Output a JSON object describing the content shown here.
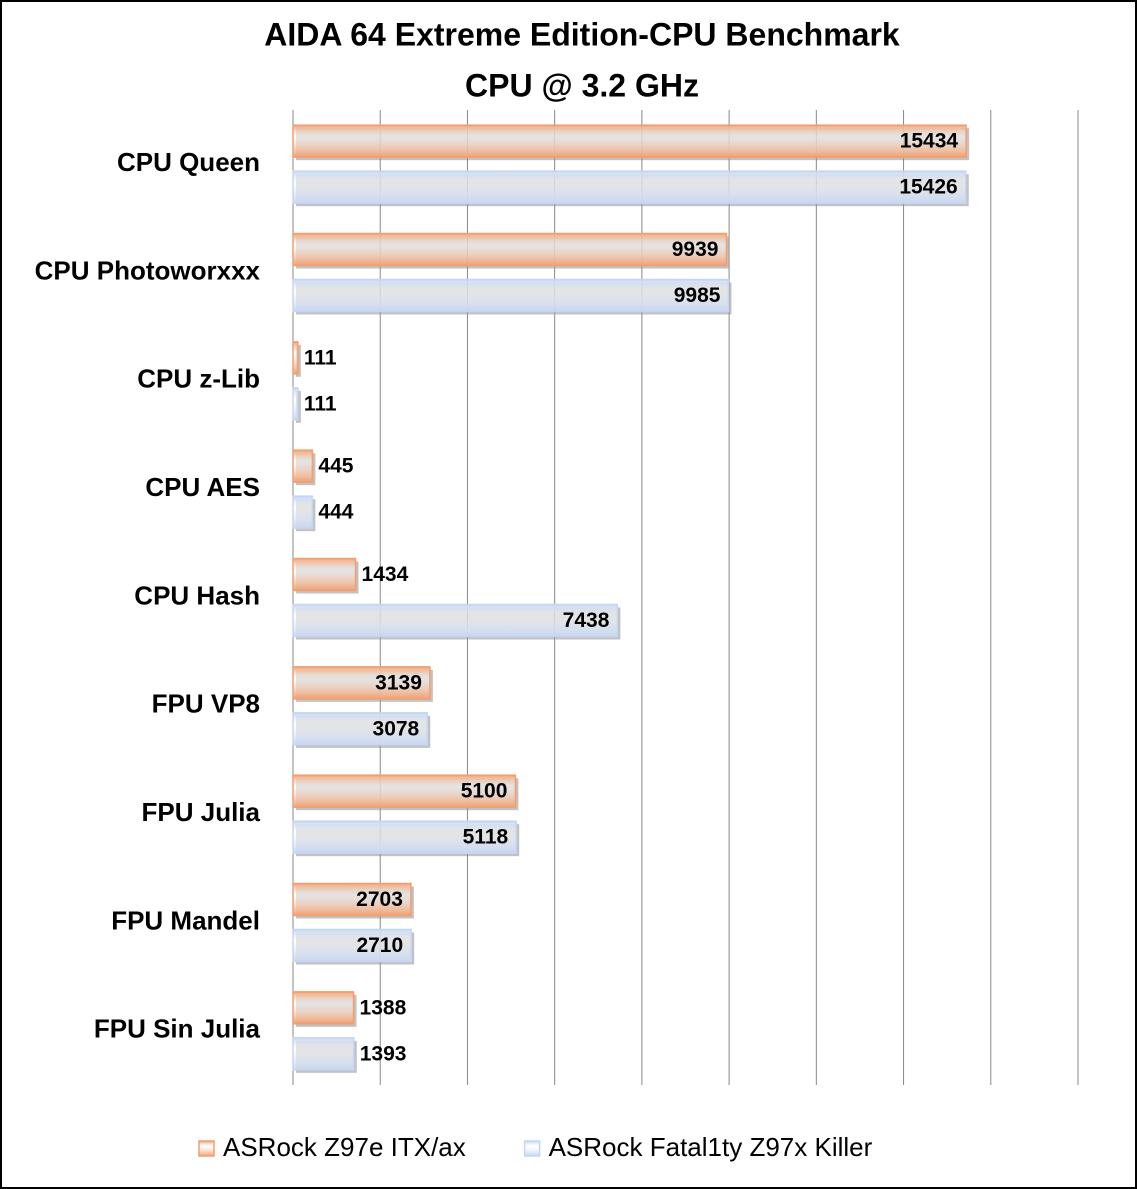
{
  "chart_data": {
    "type": "bar",
    "orientation": "horizontal",
    "title": "AIDA 64 Extreme Edition-CPU Benchmark",
    "subtitle": "CPU @ 3.2 GHz",
    "categories": [
      "CPU Queen",
      "CPU Photoworxxx",
      "CPU z-Lib",
      "CPU AES",
      "CPU Hash",
      "FPU VP8",
      "FPU Julia",
      "FPU Mandel",
      "FPU Sin Julia"
    ],
    "series": [
      {
        "name": "ASRock Z97e ITX/ax",
        "color": "#f0a070",
        "values": [
          15434,
          9939,
          111,
          445,
          1434,
          3139,
          5100,
          2703,
          1388
        ]
      },
      {
        "name": "ASRock Fatal1ty Z97x Killer",
        "color": "#c6d6f2",
        "values": [
          15426,
          9985,
          111,
          444,
          7438,
          3078,
          5118,
          2710,
          1393
        ]
      }
    ],
    "xlim": [
      0,
      18000
    ],
    "xticks": [
      0,
      2000,
      4000,
      6000,
      8000,
      10000,
      12000,
      14000,
      16000,
      18000
    ],
    "grid": true,
    "legend": "bottom"
  }
}
